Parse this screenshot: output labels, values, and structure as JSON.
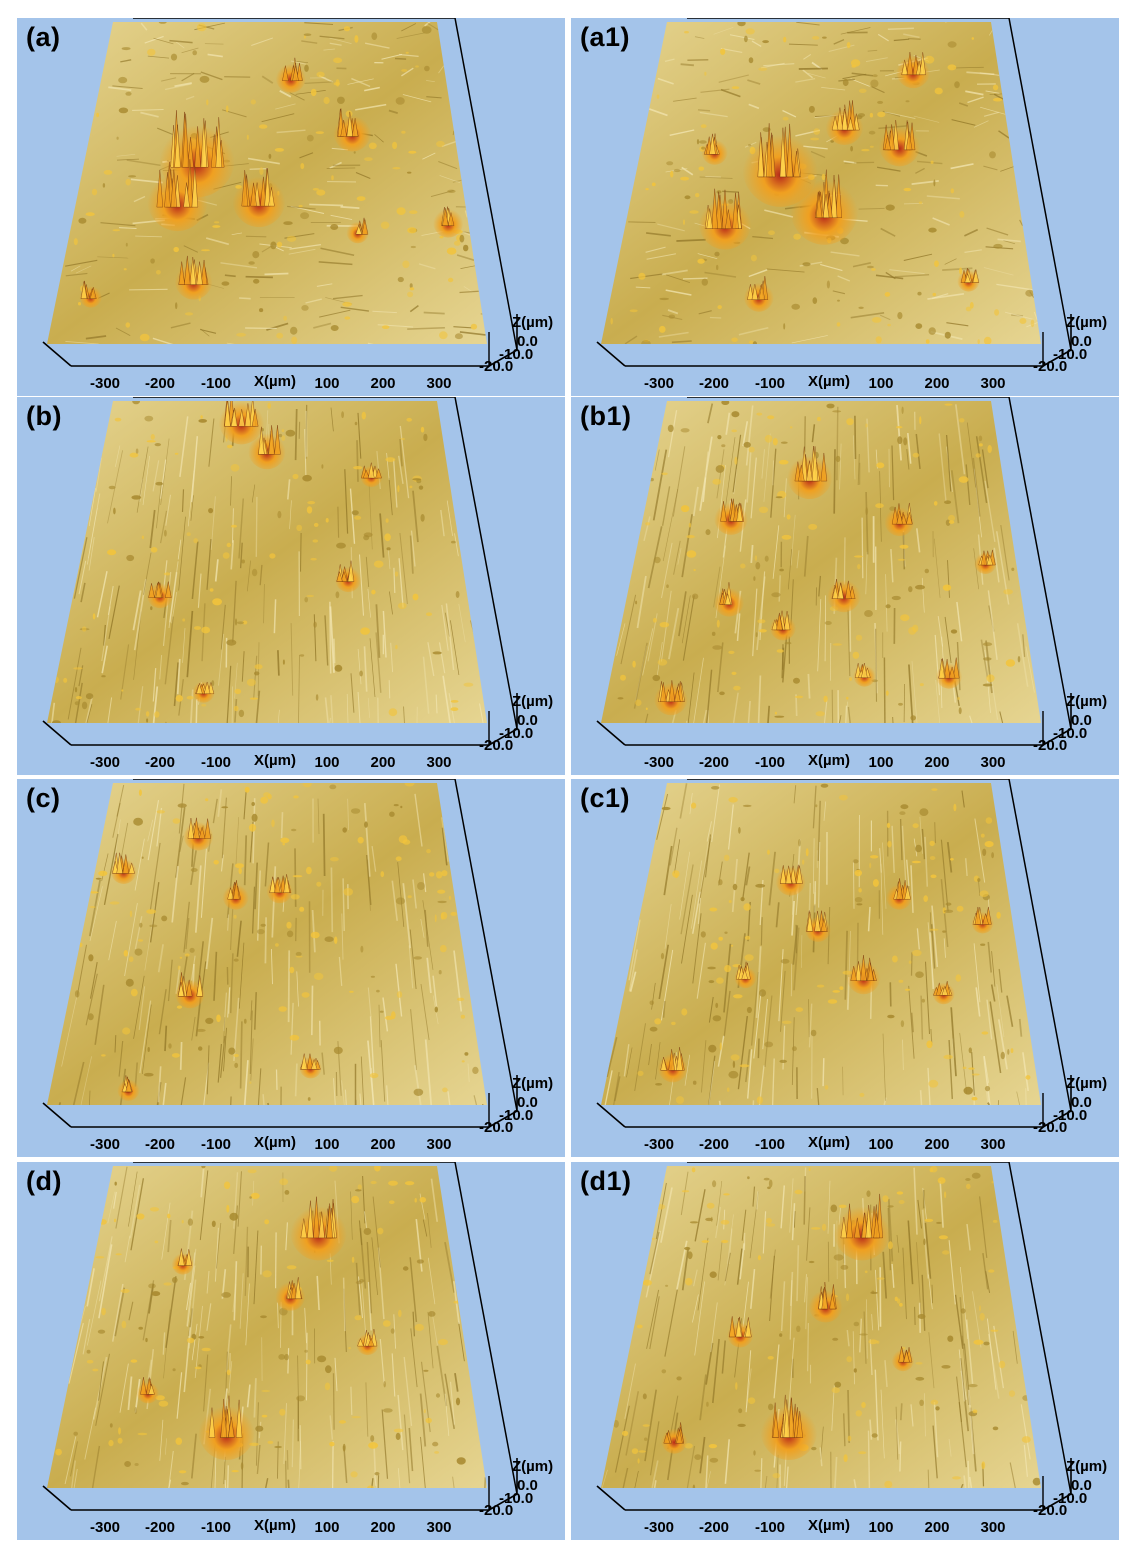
{
  "figure": {
    "panels": [
      {
        "id": "a",
        "label": "(a)"
      },
      {
        "id": "a1",
        "label": "(a1)"
      },
      {
        "id": "b",
        "label": "(b)"
      },
      {
        "id": "b1",
        "label": "(b1)"
      },
      {
        "id": "c",
        "label": "(c)"
      },
      {
        "id": "c1",
        "label": "(c1)"
      },
      {
        "id": "d",
        "label": "(d)"
      },
      {
        "id": "d1",
        "label": "(d1)"
      }
    ],
    "x_axis": {
      "title": "X(µm)",
      "ticks": [
        "-300",
        "-200",
        "-100",
        "100",
        "200",
        "300"
      ]
    },
    "z_axis": {
      "title": "Z(µm)",
      "ticks": [
        "0.0",
        "-10.0",
        "-20.0"
      ]
    },
    "colors": {
      "background": "#a4c4ea",
      "surface_base": "#c9ad4f",
      "surface_light": "#e6d592",
      "peak_mid": "#f0a020",
      "peak_dark": "#b6281a"
    }
  }
}
